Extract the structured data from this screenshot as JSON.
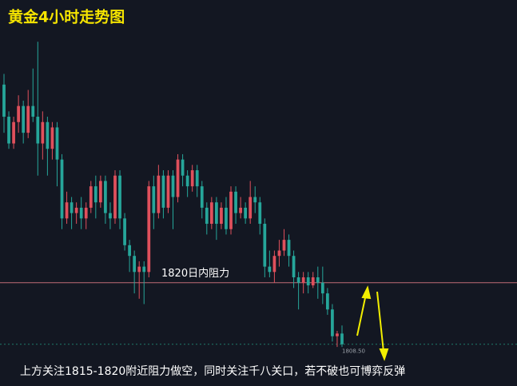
{
  "chart_data": {
    "type": "candlestick",
    "title": "黄金4小时走势图",
    "ylim": [
      1800.7,
      1872.8
    ],
    "up_color": "#e0505c",
    "down_color": "#26a69a",
    "open": [
      1857,
      1851,
      1846,
      1850,
      1853,
      1848,
      1853,
      1851,
      1846,
      1850,
      1845,
      1849,
      1843,
      1832,
      1835,
      1833,
      1834,
      1832,
      1834,
      1838,
      1835,
      1839,
      1833,
      1832,
      1840,
      1832,
      1827,
      1825,
      1822,
      1823,
      1822,
      1838,
      1833,
      1840,
      1834,
      1840,
      1836,
      1843,
      1840,
      1838,
      1841,
      1838,
      1834,
      1831,
      1835,
      1831,
      1834,
      1830,
      1837,
      1833,
      1834,
      1832,
      1836,
      1835,
      1831,
      1823,
      1822,
      1825,
      1826,
      1828,
      1825,
      1821,
      1820,
      1821,
      1819.5,
      1821,
      1820,
      1818,
      1815,
      1810,
      1810.5
    ],
    "high": [
      1859,
      1852,
      1851,
      1855,
      1854,
      1856,
      1860,
      1865,
      1852,
      1851,
      1850,
      1850,
      1844,
      1837,
      1836,
      1835,
      1836,
      1835,
      1839,
      1840,
      1840,
      1840,
      1835,
      1841,
      1841,
      1833,
      1828,
      1826,
      1824,
      1824,
      1839,
      1840,
      1842,
      1841,
      1841,
      1841,
      1844,
      1844,
      1841,
      1842,
      1842,
      1839,
      1835,
      1836,
      1836,
      1835,
      1836,
      1838,
      1838,
      1836,
      1835,
      1839,
      1838,
      1836,
      1832,
      1826,
      1826,
      1828,
      1830,
      1829,
      1826,
      1822,
      1822,
      1822,
      1822,
      1823,
      1823,
      1819,
      1816,
      1811,
      1812
    ],
    "low": [
      1848,
      1845,
      1845,
      1848,
      1846,
      1847,
      1850,
      1840,
      1843,
      1840,
      1843,
      1838,
      1830,
      1831,
      1830,
      1831,
      1830,
      1830,
      1833,
      1832,
      1834,
      1831,
      1830,
      1831,
      1830,
      1826,
      1822,
      1818,
      1817,
      1816,
      1821,
      1830,
      1832,
      1832,
      1833,
      1830,
      1835,
      1838,
      1836,
      1837,
      1836,
      1832,
      1829,
      1830,
      1828,
      1830,
      1829,
      1829,
      1831,
      1832,
      1831,
      1831,
      1833,
      1829,
      1821,
      1821,
      1820,
      1823,
      1825,
      1823,
      1819,
      1815,
      1818,
      1818,
      1819,
      1817,
      1816,
      1814,
      1809,
      1808,
      1808
    ],
    "close": [
      1851,
      1846,
      1850,
      1853,
      1848,
      1853,
      1851,
      1846,
      1850,
      1845,
      1849,
      1843,
      1832,
      1835,
      1833,
      1834,
      1832,
      1834,
      1838,
      1835,
      1839,
      1833,
      1832,
      1840,
      1832,
      1827,
      1825,
      1822,
      1823,
      1822,
      1838,
      1833,
      1840,
      1834,
      1840,
      1836,
      1843,
      1840,
      1838,
      1841,
      1838,
      1834,
      1831,
      1835,
      1831,
      1834,
      1830,
      1837,
      1833,
      1834,
      1832,
      1836,
      1835,
      1831,
      1823,
      1822,
      1825,
      1826,
      1828,
      1825,
      1821,
      1820,
      1821,
      1819.5,
      1821,
      1820,
      1818,
      1815,
      1810,
      1810.5,
      1808.5
    ],
    "resistance": {
      "value": 1820,
      "label": "1820日内阻力",
      "color": "#c06a75"
    },
    "last_price": {
      "value": 1808.5,
      "label": "1808.50",
      "color": "#1f7a6a"
    },
    "annotation": "上方关注1815-1820附近阻力做空，同时关注千八关口，若不破也可博弈反弹"
  }
}
